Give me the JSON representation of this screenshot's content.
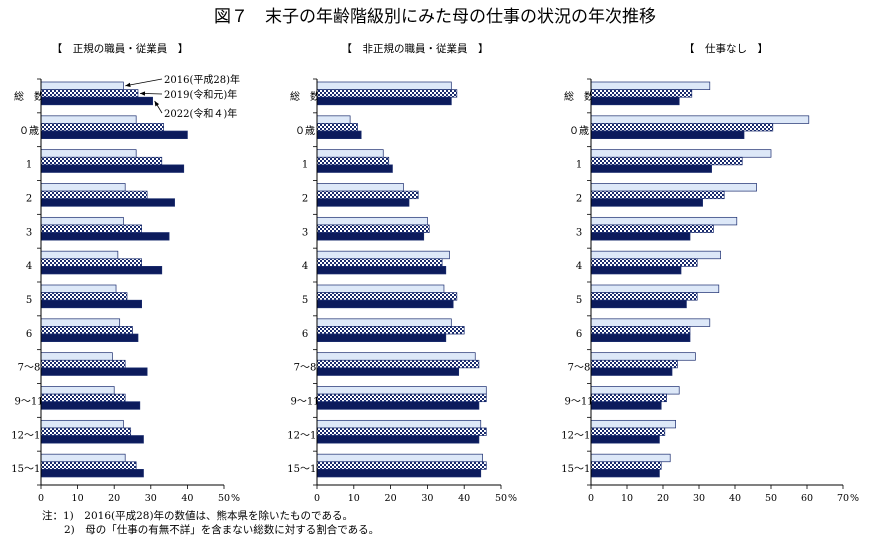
{
  "title": "図７　末子の年齢階級別にみた母の仕事の状況の年次推移",
  "colors": {
    "s2016": "#dde8f8",
    "s2019_a": "#1a2c6e",
    "s2019_b": "#ffffff",
    "s2022": "#0c1b5c",
    "axis": "#000000"
  },
  "chart_data": [
    {
      "type": "bar",
      "orientation": "horizontal",
      "title": "【　正規の職員・従業員　】",
      "categories": [
        "総　数",
        "０歳",
        "1",
        "2",
        "3",
        "4",
        "5",
        "6",
        "7～8",
        "9～11",
        "12～14",
        "15～17"
      ],
      "xlim": [
        0,
        50
      ],
      "xticks": [
        "0",
        "10",
        "20",
        "30",
        "40",
        "50%"
      ],
      "series": [
        {
          "name": "2016(平成28)年",
          "values": [
            22.5,
            26.0,
            26.0,
            23.0,
            22.5,
            21.0,
            20.5,
            21.5,
            19.5,
            20.0,
            22.5,
            23.0
          ]
        },
        {
          "name": "2019(令和元)年",
          "values": [
            26.5,
            33.5,
            33.0,
            29.0,
            27.5,
            27.5,
            23.5,
            25.0,
            23.0,
            23.0,
            24.5,
            26.0
          ]
        },
        {
          "name": "2022(令和４)年",
          "values": [
            30.5,
            40.0,
            39.0,
            36.5,
            35.0,
            33.0,
            27.5,
            26.5,
            29.0,
            27.0,
            28.0,
            28.0
          ]
        }
      ],
      "annotations": [
        "2016(平成28)年",
        "2019(令和元)年",
        "2022(令和４)年"
      ]
    },
    {
      "type": "bar",
      "orientation": "horizontal",
      "title": "【　非正規の職員・従業員　】",
      "categories": [
        "総　数",
        "０歳",
        "1",
        "2",
        "3",
        "4",
        "5",
        "6",
        "7～8",
        "9～11",
        "12～14",
        "15～17"
      ],
      "xlim": [
        0,
        50
      ],
      "xticks": [
        "0",
        "10",
        "20",
        "30",
        "40",
        "50%"
      ],
      "series": [
        {
          "name": "2016(平成28)年",
          "values": [
            36.5,
            9.0,
            18.0,
            23.5,
            30.0,
            36.0,
            34.5,
            36.5,
            43.0,
            46.0,
            44.5,
            45.0
          ]
        },
        {
          "name": "2019(令和元)年",
          "values": [
            38.0,
            11.0,
            19.5,
            27.5,
            30.5,
            34.0,
            38.0,
            40.0,
            44.0,
            46.0,
            46.0,
            46.0
          ]
        },
        {
          "name": "2022(令和４)年",
          "values": [
            36.5,
            12.0,
            20.5,
            25.0,
            29.0,
            35.0,
            37.0,
            35.0,
            38.5,
            44.0,
            44.0,
            44.5
          ]
        }
      ]
    },
    {
      "type": "bar",
      "orientation": "horizontal",
      "title": "【　仕事なし　】",
      "categories": [
        "総　数",
        "０歳",
        "1",
        "2",
        "3",
        "4",
        "5",
        "6",
        "7～8",
        "9～11",
        "12～14",
        "15～17"
      ],
      "xlim": [
        0,
        70
      ],
      "xticks": [
        "0",
        "10",
        "20",
        "30",
        "40",
        "50",
        "60",
        "70%"
      ],
      "series": [
        {
          "name": "2016(平成28)年",
          "values": [
            33.0,
            60.5,
            50.0,
            46.0,
            40.5,
            36.0,
            35.5,
            33.0,
            29.0,
            24.5,
            23.5,
            22.0
          ]
        },
        {
          "name": "2019(令和元)年",
          "values": [
            28.0,
            50.5,
            42.0,
            37.0,
            34.0,
            29.5,
            29.5,
            27.5,
            24.0,
            21.0,
            20.5,
            19.5
          ]
        },
        {
          "name": "2022(令和４)年",
          "values": [
            24.5,
            42.5,
            33.5,
            31.0,
            27.5,
            25.0,
            26.5,
            27.5,
            22.5,
            19.5,
            19.0,
            19.0
          ]
        }
      ]
    }
  ],
  "notes": {
    "line1": "注：1)　2016(平成28)年の数値は、熊本県を除いたものである。",
    "line2": "2)　母の「仕事の有無不詳」を含まない総数に対する割合である。"
  }
}
